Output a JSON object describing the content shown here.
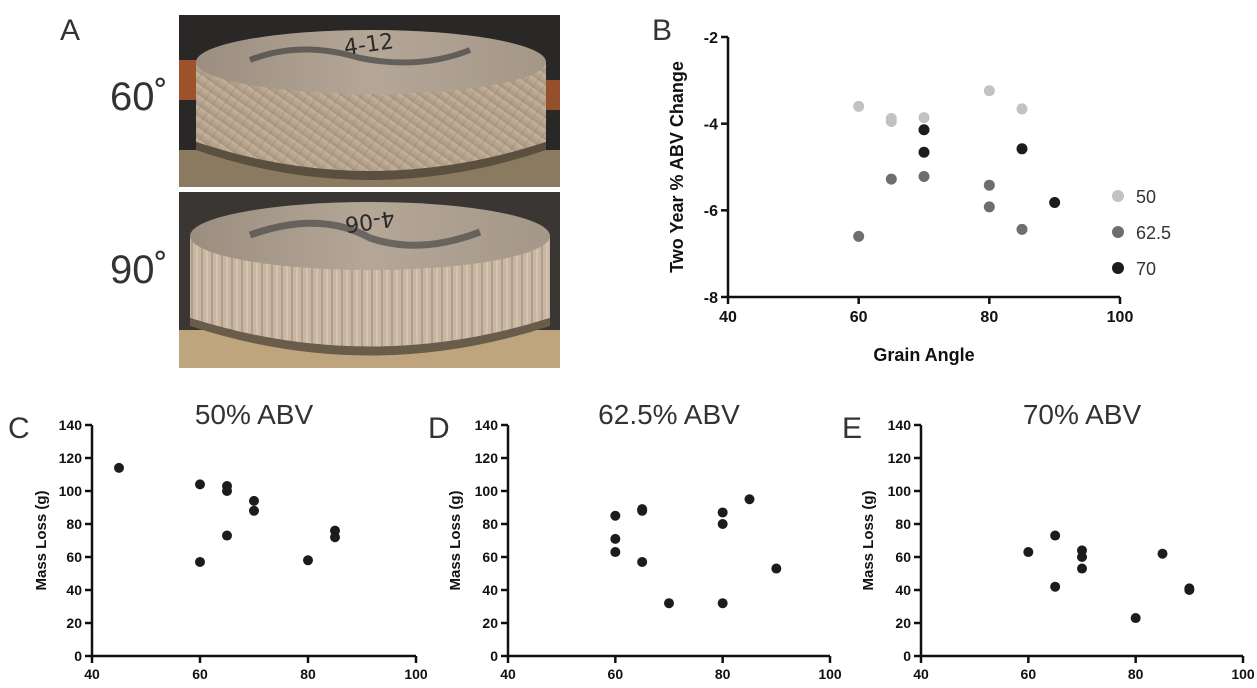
{
  "panels": {
    "a": {
      "letter": "A",
      "top_label": "60˚",
      "bottom_label": "90˚",
      "top_photo_text": "4-12",
      "bottom_photo_text": "4-06"
    }
  },
  "chart_data": [
    {
      "id": "B",
      "letter": "B",
      "type": "scatter",
      "title": "",
      "xlabel": "Grain Angle",
      "ylabel": "Two Year % ABV Change",
      "xlim": [
        40,
        100
      ],
      "ylim": [
        -8,
        -2
      ],
      "xticks": [
        40,
        60,
        80,
        100
      ],
      "yticks": [
        -8,
        -6,
        -4,
        -2
      ],
      "legend": "right",
      "series": [
        {
          "name": "50",
          "color": "#c2c2c2",
          "points": [
            [
              60,
              -3.6
            ],
            [
              65,
              -3.88
            ],
            [
              65,
              -3.95
            ],
            [
              70,
              -3.86
            ],
            [
              80,
              -3.24
            ],
            [
              85,
              -3.66
            ]
          ]
        },
        {
          "name": "62.5",
          "color": "#6e6e6e",
          "points": [
            [
              60,
              -6.6
            ],
            [
              65,
              -5.28
            ],
            [
              70,
              -5.22
            ],
            [
              80,
              -5.42
            ],
            [
              80,
              -5.92
            ],
            [
              85,
              -6.44
            ]
          ]
        },
        {
          "name": "70",
          "color": "#1c1c1c",
          "points": [
            [
              70,
              -4.14
            ],
            [
              70,
              -4.66
            ],
            [
              85,
              -4.58
            ],
            [
              90,
              -5.82
            ]
          ]
        }
      ]
    },
    {
      "id": "C",
      "letter": "C",
      "type": "scatter",
      "title": "50% ABV",
      "xlabel": "",
      "ylabel": "Mass Loss (g)",
      "xlim": [
        40,
        100
      ],
      "ylim": [
        0,
        140
      ],
      "xticks": [
        40,
        60,
        80,
        100
      ],
      "yticks": [
        0,
        20,
        40,
        60,
        80,
        100,
        120,
        140
      ],
      "series": [
        {
          "color": "#1c1c1c",
          "points": [
            [
              45,
              114
            ],
            [
              60,
              104
            ],
            [
              60,
              57
            ],
            [
              65,
              103
            ],
            [
              65,
              100
            ],
            [
              65,
              73
            ],
            [
              70,
              94
            ],
            [
              70,
              88
            ],
            [
              80,
              58
            ],
            [
              85,
              76
            ],
            [
              85,
              72
            ]
          ]
        }
      ]
    },
    {
      "id": "D",
      "letter": "D",
      "type": "scatter",
      "title": "62.5% ABV",
      "xlabel": "",
      "ylabel": "Mass Loss (g)",
      "xlim": [
        40,
        100
      ],
      "ylim": [
        0,
        140
      ],
      "xticks": [
        40,
        60,
        80,
        100
      ],
      "yticks": [
        0,
        20,
        40,
        60,
        80,
        100,
        120,
        140
      ],
      "series": [
        {
          "color": "#1c1c1c",
          "points": [
            [
              60,
              85
            ],
            [
              60,
              71
            ],
            [
              60,
              63
            ],
            [
              65,
              89
            ],
            [
              65,
              88
            ],
            [
              65,
              57
            ],
            [
              70,
              32
            ],
            [
              80,
              87
            ],
            [
              80,
              80
            ],
            [
              80,
              32
            ],
            [
              85,
              95
            ],
            [
              90,
              53
            ]
          ]
        }
      ]
    },
    {
      "id": "E",
      "letter": "E",
      "type": "scatter",
      "title": "70% ABV",
      "xlabel": "",
      "ylabel": "Mass Loss (g)",
      "xlim": [
        40,
        100
      ],
      "ylim": [
        0,
        140
      ],
      "xticks": [
        40,
        60,
        80,
        100
      ],
      "yticks": [
        0,
        20,
        40,
        60,
        80,
        100,
        120,
        140
      ],
      "series": [
        {
          "color": "#1c1c1c",
          "points": [
            [
              60,
              63
            ],
            [
              65,
              73
            ],
            [
              65,
              42
            ],
            [
              70,
              64
            ],
            [
              70,
              60
            ],
            [
              70,
              53
            ],
            [
              80,
              23
            ],
            [
              85,
              62
            ],
            [
              90,
              41
            ],
            [
              90,
              40
            ]
          ]
        }
      ]
    }
  ]
}
